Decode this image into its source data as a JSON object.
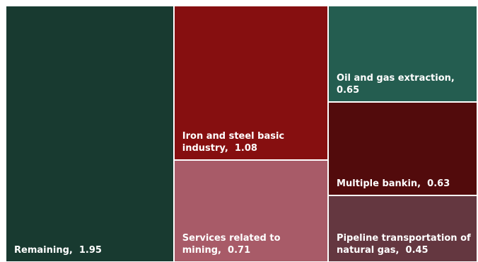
{
  "chart_data": {
    "type": "treemap",
    "items": [
      {
        "label": "Remaining",
        "value": 1.95,
        "value_text": "1.95",
        "color": "#183a30"
      },
      {
        "label": "Iron and steel basic industry",
        "value": 1.08,
        "value_text": "1.08",
        "color": "#860f10"
      },
      {
        "label": "Services related to mining",
        "value": 0.71,
        "value_text": "0.71",
        "color": "#a85b68"
      },
      {
        "label": "Oil and gas extraction",
        "value": 0.65,
        "value_text": "0.65",
        "color": "#245d50"
      },
      {
        "label": "Multiple bankin",
        "value": 0.63,
        "value_text": "0.63",
        "color": "#520b0c"
      },
      {
        "label": "Pipeline transportation of natural gas",
        "value": 0.45,
        "value_text": "0.45",
        "color": "#643740"
      }
    ]
  }
}
